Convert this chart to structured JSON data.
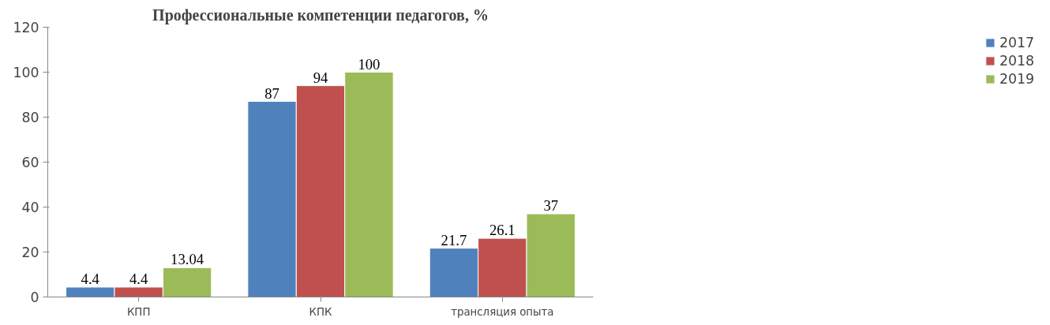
{
  "chart_data": {
    "type": "bar",
    "title": "Профессиональные компетенции педагогов, %",
    "categories": [
      "КПП",
      "КПК",
      "трансляция опыта"
    ],
    "series": [
      {
        "name": "2017",
        "color": "#4f81bd",
        "values": [
          4.4,
          87,
          21.7
        ]
      },
      {
        "name": "2018",
        "color": "#c0504d",
        "values": [
          4.4,
          94,
          26.1
        ]
      },
      {
        "name": "2019",
        "color": "#9bbb59",
        "values": [
          13.04,
          100,
          37
        ]
      }
    ],
    "ylim": [
      0,
      120
    ],
    "yticks": [
      0,
      20,
      40,
      60,
      80,
      100,
      120
    ],
    "grid": false,
    "legend": "right",
    "data_labels": true
  }
}
